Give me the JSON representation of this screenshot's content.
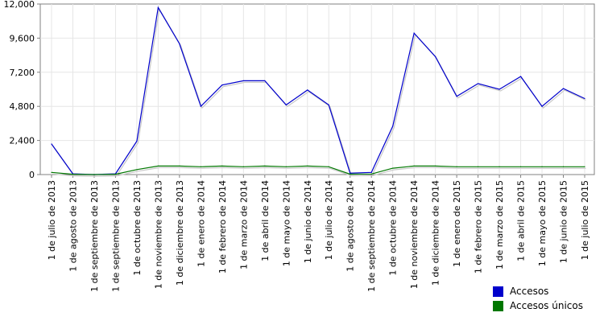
{
  "chart_data": {
    "type": "line",
    "categories": [
      "1 de julio de 2013",
      "1 de agosto de 2013",
      "1 de septiembre de 2013",
      "1 de septiembre de 2013",
      "1 de octubre de 2013",
      "1 de noviembre de 2013",
      "1 de diciembre de 2013",
      "1 de enero de 2014",
      "1 de febrero de 2014",
      "1 de marzo de 2014",
      "1 de abril de 2014",
      "1 de mayo de 2014",
      "1 de junio de 2014",
      "1 de julio de 2014",
      "1 de agosto de 2014",
      "1 de septiembre de 2014",
      "1 de octubre de 2014",
      "1 de noviembre de 2014",
      "1 de diciembre de 2014",
      "1 de enero de 2015",
      "1 de febrero de 2015",
      "1 de marzo de 2015",
      "1 de abril de 2015",
      "1 de mayo de 2015",
      "1 de junio de 2015",
      "1 de julio de 2015"
    ],
    "series": [
      {
        "name": "Accesos",
        "color": "#0000cc",
        "values": [
          2150,
          50,
          0,
          50,
          2350,
          11750,
          9200,
          4800,
          6300,
          6600,
          6600,
          4900,
          5950,
          4900,
          100,
          150,
          3400,
          9950,
          8300,
          5500,
          6400,
          6000,
          6900,
          4800,
          6050,
          5350
        ]
      },
      {
        "name": "Accesos únicos",
        "color": "#007700",
        "values": [
          150,
          20,
          0,
          20,
          350,
          600,
          600,
          550,
          600,
          550,
          600,
          550,
          600,
          550,
          30,
          40,
          450,
          600,
          600,
          550,
          550,
          550,
          550,
          550,
          550,
          550
        ]
      }
    ],
    "yticks": [
      "0",
      "2,400",
      "4,800",
      "7,200",
      "9,600",
      "12,000"
    ],
    "ylim": [
      0,
      12000
    ],
    "grid": true,
    "legend_position": "bottom-right"
  }
}
